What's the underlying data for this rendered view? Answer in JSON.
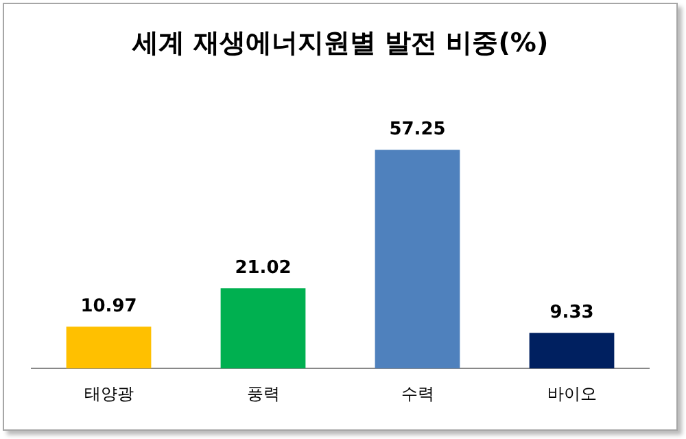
{
  "chart_data": {
    "type": "bar",
    "title": "세계 재생에너지원별 발전 비중(%)",
    "categories": [
      "태양광",
      "풍력",
      "수력",
      "바이오"
    ],
    "values": [
      10.97,
      21.02,
      57.25,
      9.33
    ],
    "colors": [
      "#ffc000",
      "#00b050",
      "#4f81bd",
      "#002060"
    ],
    "data_labels": true,
    "grid": false,
    "legend": false
  }
}
